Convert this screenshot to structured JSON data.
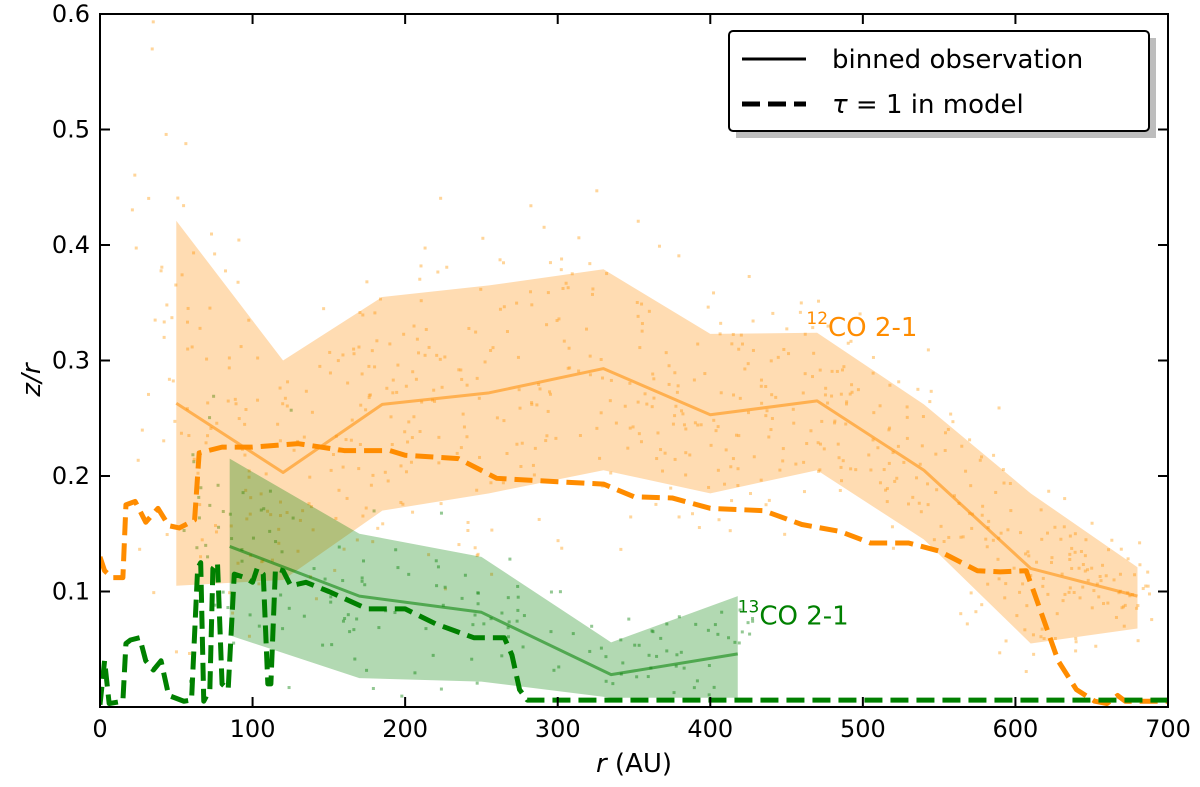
{
  "chart_data": {
    "type": "line",
    "xlabel_var": "r",
    "xlabel_unit": " (AU)",
    "ylabel": "z/r",
    "xlim": [
      0,
      700
    ],
    "ylim": [
      0,
      0.6
    ],
    "xticks": [
      0,
      100,
      200,
      300,
      400,
      500,
      600,
      700
    ],
    "yticks": [
      0.1,
      0.2,
      0.3,
      0.4,
      0.5,
      0.6
    ],
    "ytick_labels": [
      "0.1",
      "0.2",
      "0.3",
      "0.4",
      "0.5",
      "0.6"
    ],
    "legend": {
      "placement": "top-right",
      "entries": [
        {
          "style": "solid",
          "label": "binned observation"
        },
        {
          "style": "dashed",
          "label_greek": "τ",
          "label": " = 1 in model"
        }
      ]
    },
    "colors": {
      "co12": "#ff8c00",
      "co13": "#008000",
      "co12_light": "#ffb347",
      "co13_light": "#3a9b3a"
    },
    "annotations": [
      {
        "series": "co12",
        "sup": "12",
        "label": "CO 2-1",
        "x": 463,
        "y": 0.33
      },
      {
        "series": "co13",
        "sup": "13",
        "label": "CO 2-1",
        "x": 418,
        "y": 0.08
      }
    ],
    "series": [
      {
        "name": "12CO 2-1 binned observation",
        "key": "co12",
        "style": "solid",
        "x": [
          50,
          120,
          185,
          255,
          330,
          400,
          470,
          540,
          610,
          680
        ],
        "y": [
          0.263,
          0.203,
          0.262,
          0.272,
          0.293,
          0.253,
          0.265,
          0.205,
          0.12,
          0.096
        ],
        "band_upper": [
          0.421,
          0.3,
          0.355,
          0.365,
          0.379,
          0.323,
          0.324,
          0.262,
          0.185,
          0.121
        ],
        "band_lower": [
          0.105,
          0.11,
          0.17,
          0.185,
          0.205,
          0.185,
          0.205,
          0.145,
          0.055,
          0.068
        ]
      },
      {
        "name": "13CO 2-1 binned observation",
        "key": "co13",
        "style": "solid",
        "x": [
          85,
          170,
          250,
          335,
          418
        ],
        "y": [
          0.139,
          0.096,
          0.082,
          0.028,
          0.046
        ],
        "band_upper": [
          0.215,
          0.15,
          0.13,
          0.056,
          0.096
        ],
        "band_lower": [
          0.062,
          0.025,
          0.022,
          0.008,
          0.008
        ]
      },
      {
        "name": "12CO 2-1 tau=1 in model",
        "key": "co12",
        "style": "dashed",
        "x": [
          0,
          3,
          8,
          15,
          17,
          23,
          30,
          38,
          45,
          52,
          62,
          65,
          80,
          100,
          130,
          160,
          190,
          200,
          235,
          260,
          300,
          330,
          350,
          375,
          400,
          435,
          460,
          485,
          505,
          530,
          550,
          575,
          590,
          607,
          612,
          628,
          640,
          652,
          660,
          667,
          672,
          680,
          700
        ],
        "y": [
          0.13,
          0.118,
          0.112,
          0.112,
          0.175,
          0.178,
          0.16,
          0.172,
          0.157,
          0.155,
          0.162,
          0.22,
          0.225,
          0.225,
          0.228,
          0.222,
          0.222,
          0.218,
          0.215,
          0.198,
          0.195,
          0.193,
          0.182,
          0.181,
          0.172,
          0.17,
          0.158,
          0.152,
          0.142,
          0.142,
          0.135,
          0.118,
          0.117,
          0.118,
          0.1,
          0.04,
          0.015,
          0.005,
          0.003,
          0.01,
          0.005,
          0.005,
          0.005
        ]
      },
      {
        "name": "13CO 2-1 tau=1 in model",
        "key": "co13",
        "style": "dashed",
        "x": [
          0,
          3,
          6,
          15,
          17,
          20,
          26,
          30,
          35,
          40,
          45,
          55,
          60,
          64,
          66,
          68,
          72,
          74,
          77,
          80,
          84,
          88,
          95,
          100,
          103,
          107,
          110,
          112,
          115,
          120,
          125,
          135,
          150,
          175,
          200,
          220,
          245,
          265,
          270,
          275,
          280,
          300,
          400,
          500,
          600,
          700
        ],
        "y": [
          0.002,
          0.04,
          0.003,
          0.005,
          0.055,
          0.058,
          0.06,
          0.04,
          0.032,
          0.04,
          0.01,
          0.005,
          0.006,
          0.12,
          0.125,
          0.005,
          0.015,
          0.12,
          0.125,
          0.02,
          0.015,
          0.115,
          0.112,
          0.108,
          0.12,
          0.115,
          0.02,
          0.02,
          0.12,
          0.118,
          0.105,
          0.108,
          0.1,
          0.085,
          0.085,
          0.072,
          0.06,
          0.06,
          0.045,
          0.015,
          0.006,
          0.006,
          0.006,
          0.006,
          0.006,
          0.006
        ]
      }
    ]
  }
}
